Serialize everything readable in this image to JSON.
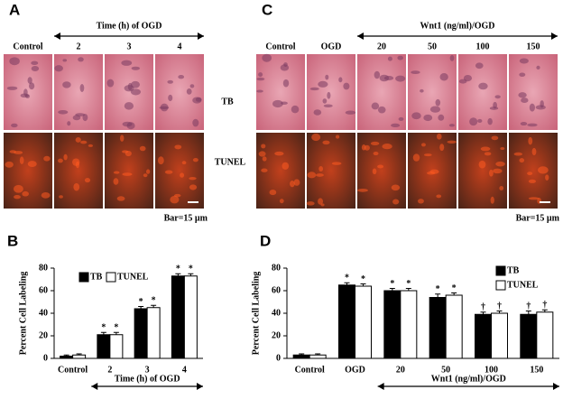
{
  "panels": [
    {
      "label": "A",
      "header": "Time (h) of OGD",
      "columns": [
        "Control",
        "2",
        "3",
        "4"
      ],
      "rows": [
        "TB",
        "TUNEL"
      ],
      "scale": "Bar=15 µm"
    },
    {
      "label": "C",
      "header": "Wnt1 (ng/ml)/OGD",
      "columns": [
        "Control",
        "OGD",
        "20",
        "50",
        "100",
        "150"
      ],
      "scale": "Bar=15 µm"
    }
  ],
  "chart_data": [
    {
      "type": "bar",
      "label": "B",
      "y_label": "Percent Cell Labeling",
      "x_group_label": "Time (h) of OGD",
      "categories": [
        "Control",
        "2",
        "3",
        "4"
      ],
      "ylim": [
        0,
        80
      ],
      "yticks": [
        0,
        20,
        40,
        60,
        80
      ],
      "legend": "upper left",
      "series": [
        {
          "name": "TB",
          "color": "#000000",
          "values": [
            2,
            21,
            44,
            73
          ],
          "errors": [
            1,
            2,
            2,
            2
          ],
          "markers": [
            null,
            "*",
            "*",
            "*"
          ]
        },
        {
          "name": "TUNEL",
          "color": "#ffffff",
          "values": [
            3,
            21,
            45,
            73
          ],
          "errors": [
            1,
            2,
            2,
            2
          ],
          "markers": [
            null,
            "*",
            "*",
            "*"
          ]
        }
      ]
    },
    {
      "type": "bar",
      "label": "D",
      "y_label": "Percent Cell Labeling",
      "x_group_label": "Wnt1 (ng/ml)/OGD",
      "categories": [
        "Control",
        "OGD",
        "20",
        "50",
        "100",
        "150"
      ],
      "ylim": [
        0,
        80
      ],
      "yticks": [
        0,
        20,
        40,
        60,
        80
      ],
      "legend": "upper right",
      "series": [
        {
          "name": "TB",
          "color": "#000000",
          "values": [
            3,
            65,
            60,
            54,
            39,
            39
          ],
          "errors": [
            1,
            2,
            2,
            3,
            2,
            3
          ],
          "markers": [
            null,
            "*",
            "*",
            "*",
            "†",
            "†"
          ]
        },
        {
          "name": "TUNEL",
          "color": "#ffffff",
          "values": [
            3,
            64,
            60,
            56,
            40,
            41
          ],
          "errors": [
            1,
            2,
            2,
            2,
            2,
            2
          ],
          "markers": [
            null,
            "*",
            "*",
            "*",
            "†",
            "†"
          ]
        }
      ]
    }
  ]
}
